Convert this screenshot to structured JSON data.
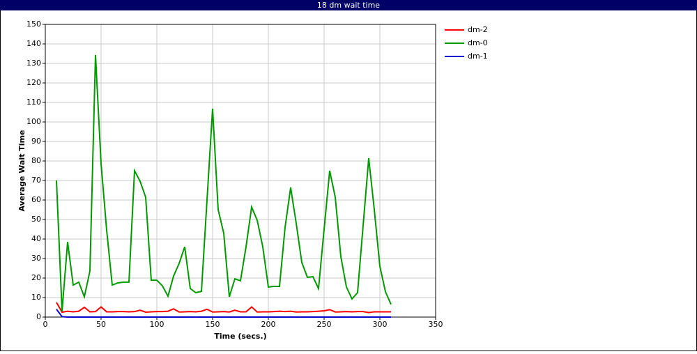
{
  "chart_data": {
    "type": "line",
    "title": "18 dm wait time",
    "x_label": "Time (secs.)",
    "y_label": "Average Wait Time",
    "xlim": [
      0,
      350
    ],
    "ylim": [
      0,
      150
    ],
    "xticks": [
      0,
      50,
      100,
      150,
      200,
      250,
      300,
      350
    ],
    "yticks": [
      0,
      10,
      20,
      30,
      40,
      50,
      60,
      70,
      80,
      90,
      100,
      110,
      120,
      130,
      140,
      150
    ],
    "grid": true,
    "x": [
      10,
      15,
      20,
      25,
      30,
      35,
      40,
      45,
      50,
      55,
      60,
      65,
      70,
      75,
      80,
      85,
      90,
      95,
      100,
      105,
      110,
      115,
      120,
      125,
      130,
      135,
      140,
      145,
      150,
      155,
      160,
      165,
      170,
      175,
      180,
      185,
      190,
      195,
      200,
      205,
      210,
      215,
      220,
      225,
      230,
      235,
      240,
      245,
      250,
      255,
      260,
      265,
      270,
      275,
      280,
      285,
      290,
      295,
      300,
      305,
      310
    ],
    "series": [
      {
        "name": "dm-2",
        "color": "#ff0000",
        "values": [
          7.5,
          2.5,
          3,
          2.7,
          3,
          5,
          2.7,
          2.8,
          5.2,
          2.7,
          2.7,
          2.8,
          2.8,
          2.7,
          2.8,
          3.5,
          2.5,
          2.7,
          2.8,
          2.8,
          3,
          4.2,
          2.6,
          2.7,
          2.8,
          2.7,
          3,
          4,
          2.6,
          2.7,
          2.8,
          2.6,
          3.5,
          2.7,
          2.7,
          5.2,
          2.6,
          2.7,
          2.7,
          2.8,
          3,
          2.8,
          3,
          2.6,
          2.7,
          2.7,
          2.8,
          3,
          3.2,
          3.8,
          2.6,
          2.7,
          2.8,
          2.7,
          2.8,
          2.8,
          2.3,
          2.7,
          2.7,
          2.7,
          2.7
        ]
      },
      {
        "name": "dm-0",
        "color": "#009900",
        "values": [
          70,
          3,
          38.5,
          16.4,
          17.9,
          10.4,
          23.6,
          134.3,
          78.6,
          44.6,
          16.4,
          17.5,
          17.9,
          17.9,
          75,
          69.6,
          61.4,
          18.9,
          18.9,
          16,
          10.7,
          21,
          27.5,
          36,
          14.6,
          12.5,
          13.2,
          60,
          106.8,
          55,
          43,
          10.4,
          19.6,
          18.6,
          36,
          56.4,
          49.6,
          36,
          15.4,
          15.7,
          15.7,
          46,
          66.4,
          48,
          28,
          20.4,
          20.7,
          14.6,
          45,
          75,
          61.4,
          31,
          15.4,
          9.3,
          12.5,
          47,
          81.4,
          55,
          26,
          13,
          6.5
        ]
      },
      {
        "name": "dm-1",
        "color": "#0000cc",
        "values": [
          4,
          0.2,
          0,
          0,
          0,
          0,
          0,
          0,
          0,
          0,
          0,
          0,
          0,
          0,
          0,
          0,
          0,
          0,
          0,
          0,
          0,
          0,
          0,
          0,
          0,
          0,
          0,
          0,
          0,
          0,
          0,
          0,
          0,
          0,
          0,
          0,
          0,
          0,
          0,
          0,
          0,
          0,
          0,
          0,
          0,
          0,
          0,
          0,
          0,
          0,
          0,
          0,
          0,
          0,
          0,
          0,
          0,
          0,
          0,
          0,
          0
        ]
      }
    ]
  }
}
